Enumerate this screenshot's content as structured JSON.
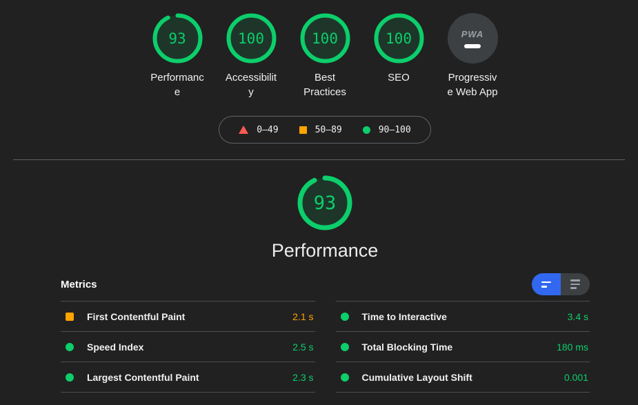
{
  "colors": {
    "green": "#0cce6b",
    "orange": "#ffa400",
    "red": "#ff5a50",
    "blue": "#3268f0",
    "background": "#212121"
  },
  "summary_gauges": [
    {
      "id": "performance",
      "label": "Performance",
      "score": 93,
      "type": "gauge"
    },
    {
      "id": "accessibility",
      "label": "Accessibility",
      "score": 100,
      "type": "gauge"
    },
    {
      "id": "best-practices",
      "label": "Best Practices",
      "score": 100,
      "type": "gauge"
    },
    {
      "id": "seo",
      "label": "SEO",
      "score": 100,
      "type": "gauge"
    },
    {
      "id": "pwa",
      "label": "Progressive Web App",
      "type": "badge",
      "badge_text": "PWA"
    }
  ],
  "legend": [
    {
      "shape": "triangle",
      "range": "0–49"
    },
    {
      "shape": "square",
      "range": "50–89"
    },
    {
      "shape": "circle",
      "range": "90–100"
    }
  ],
  "category": {
    "score": 93,
    "title": "Performance"
  },
  "metrics": {
    "heading": "Metrics",
    "columns": [
      [
        {
          "label": "First Contentful Paint",
          "value": "2.1 s",
          "rating": "average"
        },
        {
          "label": "Speed Index",
          "value": "2.5 s",
          "rating": "pass"
        },
        {
          "label": "Largest Contentful Paint",
          "value": "2.3 s",
          "rating": "pass"
        }
      ],
      [
        {
          "label": "Time to Interactive",
          "value": "3.4 s",
          "rating": "pass"
        },
        {
          "label": "Total Blocking Time",
          "value": "180 ms",
          "rating": "pass"
        },
        {
          "label": "Cumulative Layout Shift",
          "value": "0.001",
          "rating": "pass"
        }
      ]
    ]
  }
}
